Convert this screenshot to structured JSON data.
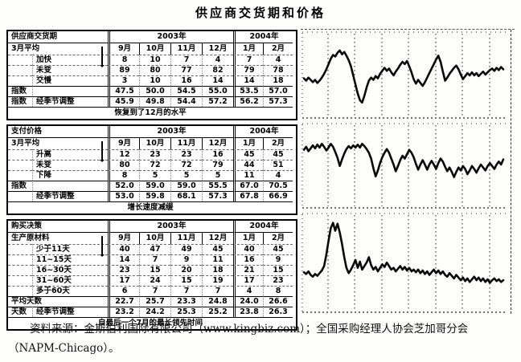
{
  "page_title": "供应商交货期和价格",
  "years": [
    "2003年",
    "2004年"
  ],
  "months": [
    "9月",
    "10月",
    "11月",
    "12月",
    "1月",
    "2月"
  ],
  "tables": [
    {
      "title": "供应商交货期",
      "sub": "3月平均",
      "rows": [
        {
          "c0": "",
          "c1": "加快",
          "v": [
            "8",
            "10",
            "7",
            "4",
            "7",
            "4"
          ]
        },
        {
          "c0": "",
          "c1": "未变",
          "v": [
            "89",
            "80",
            "77",
            "82",
            "79",
            "78"
          ]
        },
        {
          "c0": "",
          "c1": "交慢",
          "v": [
            "3",
            "10",
            "16",
            "14",
            "14",
            "18"
          ]
        },
        {
          "c0": "指数",
          "c1": "",
          "v": [
            "47.5",
            "50.0",
            "54.5",
            "55.0",
            "53.5",
            "57.0"
          ],
          "s": 1
        },
        {
          "c0": "指数",
          "c1": "经季节调整",
          "v": [
            "45.9",
            "49.8",
            "54.4",
            "57.2",
            "56.2",
            "57.3"
          ],
          "s": 1
        }
      ],
      "note": "恢复到了12月的水平"
    },
    {
      "title": "支付价格",
      "sub": "3月平均",
      "rows": [
        {
          "c0": "",
          "c1": "升高",
          "v": [
            "12",
            "23",
            "23",
            "16",
            "45",
            "45"
          ]
        },
        {
          "c0": "",
          "c1": "未变",
          "v": [
            "80",
            "72",
            "72",
            "79",
            "44",
            "51"
          ]
        },
        {
          "c0": "",
          "c1": "下降",
          "v": [
            "8",
            "5",
            "5",
            "5",
            "11",
            "4"
          ]
        },
        {
          "c0": "指数",
          "c1": "",
          "v": [
            "52.0",
            "59.0",
            "59.0",
            "55.5",
            "67.0",
            "70.5"
          ],
          "s": 1
        },
        {
          "c0": "",
          "c1": "经季节调整",
          "v": [
            "53.0",
            "59.8",
            "68.1",
            "57.3",
            "67.8",
            "66.9"
          ],
          "s": 1
        }
      ],
      "note": "增长速度减缓"
    },
    {
      "title": "购买决策",
      "sub": "生产原材料",
      "rows": [
        {
          "c0": "",
          "c1": "少于11天",
          "v": [
            "40",
            "47",
            "49",
            "45",
            "40",
            "45"
          ]
        },
        {
          "c0": "",
          "c1": "11~15天",
          "v": [
            "14",
            "7",
            "9",
            "11",
            "16",
            "9"
          ]
        },
        {
          "c0": "",
          "c1": "16~30天",
          "v": [
            "23",
            "15",
            "20",
            "18",
            "21",
            "15"
          ]
        },
        {
          "c0": "",
          "c1": "31~60天",
          "v": [
            "17",
            "24",
            "15",
            "19",
            "17",
            "23"
          ]
        },
        {
          "c0": "",
          "c1": "多于60天",
          "v": [
            "6",
            "7",
            "7",
            "7",
            "4",
            "8"
          ]
        },
        {
          "wide": "平均天数",
          "v": [
            "22.7",
            "25.7",
            "23.3",
            "24.8",
            "24.0",
            "26.6"
          ],
          "s": 1
        },
        {
          "c0": "天数",
          "c1": "经季节调整",
          "v": [
            "23.2",
            "24.2",
            "25.3",
            "25.2",
            "23.8",
            "26.3"
          ],
          "s": 1
        }
      ],
      "note": "自最后一个7月的最长领先时间"
    }
  ],
  "chart_data": [
    {
      "type": "line",
      "name": "supplier-delivery-trend",
      "title": "",
      "points": [
        56,
        59,
        55,
        58,
        61,
        58,
        62,
        59,
        55,
        50,
        44,
        37,
        30,
        25,
        27,
        22,
        19,
        24,
        21,
        26,
        32,
        40,
        52,
        64,
        76,
        85,
        88,
        79,
        68,
        59,
        55,
        58,
        53,
        56,
        50,
        46,
        42,
        46,
        43,
        48,
        52,
        47,
        43,
        38,
        34,
        37,
        33,
        40,
        48,
        57,
        63,
        58,
        62,
        66,
        61,
        55,
        49,
        43,
        37,
        31,
        26,
        34,
        47,
        59,
        55,
        50,
        46,
        42,
        39,
        44,
        51,
        57,
        53,
        49,
        52,
        48,
        52,
        49,
        53,
        50,
        47,
        51,
        48,
        45,
        43,
        46,
        42,
        45,
        41,
        44
      ]
    },
    {
      "type": "line",
      "name": "prices-paid-trend",
      "title": "",
      "points": [
        30,
        26,
        32,
        28,
        24,
        28,
        23,
        27,
        22,
        26,
        31,
        27,
        22,
        26,
        33,
        41,
        52,
        43,
        35,
        29,
        25,
        28,
        24,
        27,
        23,
        27,
        22,
        25,
        29,
        34,
        42,
        55,
        66,
        58,
        48,
        40,
        34,
        29,
        34,
        42,
        50,
        59,
        52,
        44,
        38,
        42,
        36,
        30,
        34,
        40,
        49,
        57,
        50,
        44,
        50,
        57,
        50,
        45,
        50,
        56,
        48,
        42,
        46,
        53,
        59,
        54,
        60,
        67,
        60,
        54,
        58,
        52,
        56,
        63,
        58,
        52,
        56,
        61,
        55,
        50,
        54,
        58,
        52,
        48,
        52,
        56,
        50,
        46,
        50,
        43
      ]
    },
    {
      "type": "line",
      "name": "lead-time-trend",
      "title": "",
      "points": [
        62,
        64,
        61,
        65,
        67,
        64,
        66,
        63,
        60,
        55,
        42,
        26,
        12,
        6,
        15,
        7,
        17,
        30,
        45,
        57,
        63,
        59,
        54,
        48,
        57,
        50,
        59,
        55,
        51,
        45,
        54,
        59,
        56,
        61,
        57,
        53,
        56,
        51,
        55,
        59,
        57,
        61,
        58,
        55,
        59,
        56,
        60,
        57,
        61,
        59,
        62,
        59,
        63,
        60,
        64,
        61,
        65,
        62,
        59,
        63,
        60,
        64,
        61,
        65,
        67,
        63,
        66,
        69,
        65,
        68,
        71,
        68,
        72,
        69,
        73,
        70,
        67,
        71,
        68,
        72,
        69,
        73,
        70,
        74,
        71,
        69,
        72,
        70,
        73,
        71
      ]
    }
  ],
  "source": {
    "line1": "资料来源：金斯伯利国际有限公司（www.kingbiz.com）；全国采购经理人协会芝加哥分会",
    "line2": "（NAPM-Chicago）。"
  }
}
